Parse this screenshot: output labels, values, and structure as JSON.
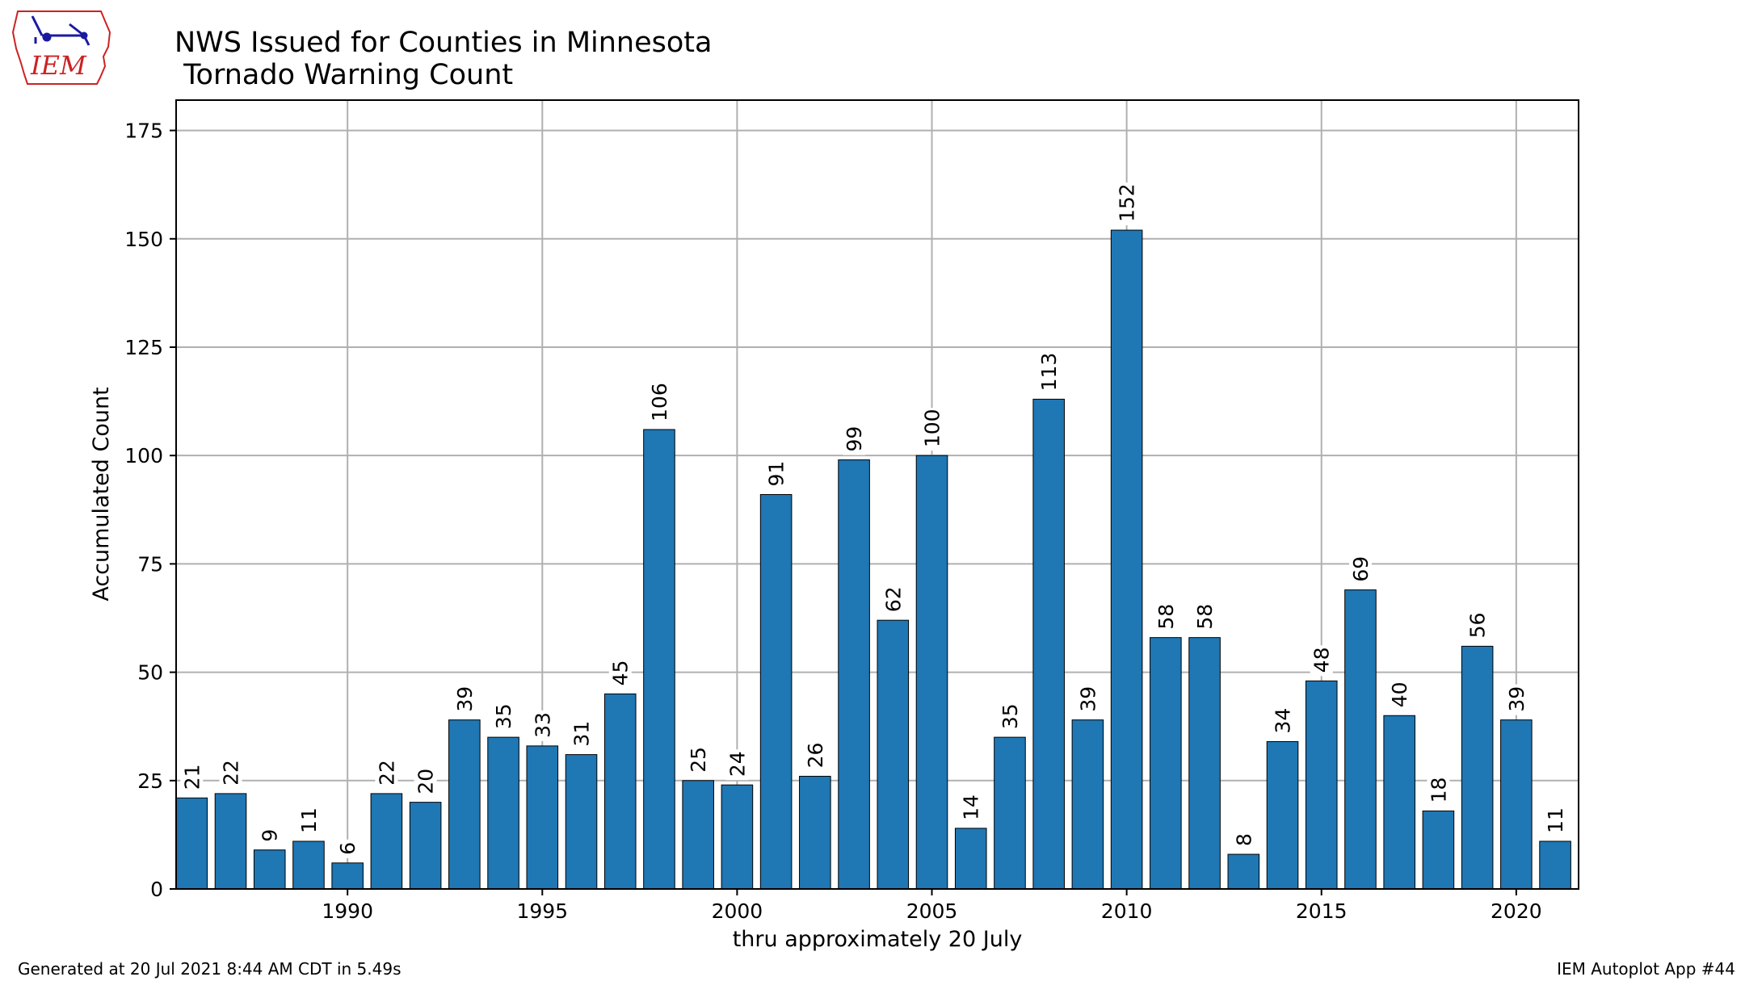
{
  "chart_data": {
    "type": "bar",
    "title": "NWS Issued for Counties in Minnesota",
    "subtitle": " Tornado Warning Count",
    "xlabel": "thru approximately 20 July",
    "ylabel": "Accumulated Count",
    "categories": [
      1986,
      1987,
      1988,
      1989,
      1990,
      1991,
      1992,
      1993,
      1994,
      1995,
      1996,
      1997,
      1998,
      1999,
      2000,
      2001,
      2002,
      2003,
      2004,
      2005,
      2006,
      2007,
      2008,
      2009,
      2010,
      2011,
      2012,
      2013,
      2014,
      2015,
      2016,
      2017,
      2018,
      2019,
      2020,
      2021
    ],
    "values": [
      21,
      22,
      9,
      11,
      6,
      22,
      20,
      39,
      35,
      33,
      31,
      45,
      106,
      25,
      24,
      91,
      26,
      99,
      62,
      100,
      14,
      35,
      113,
      39,
      152,
      58,
      58,
      8,
      34,
      48,
      69,
      40,
      18,
      56,
      39,
      11
    ],
    "ylim": [
      0,
      182
    ],
    "yticks": [
      0,
      25,
      50,
      75,
      100,
      125,
      150,
      175
    ],
    "xticks": [
      1990,
      1995,
      2000,
      2005,
      2010,
      2015,
      2020
    ],
    "xlim": [
      1985.6,
      2021.6
    ],
    "grid": true,
    "bar_color": "#1f77b4",
    "bar_edge_color": "#000000"
  },
  "footer": {
    "left": "Generated at 20 Jul 2021 8:44 AM CDT in 5.49s",
    "right": "IEM Autoplot App #44"
  },
  "logo": {
    "text": "IEM",
    "color": "#cc2222",
    "accent": "#1a1aa0"
  }
}
